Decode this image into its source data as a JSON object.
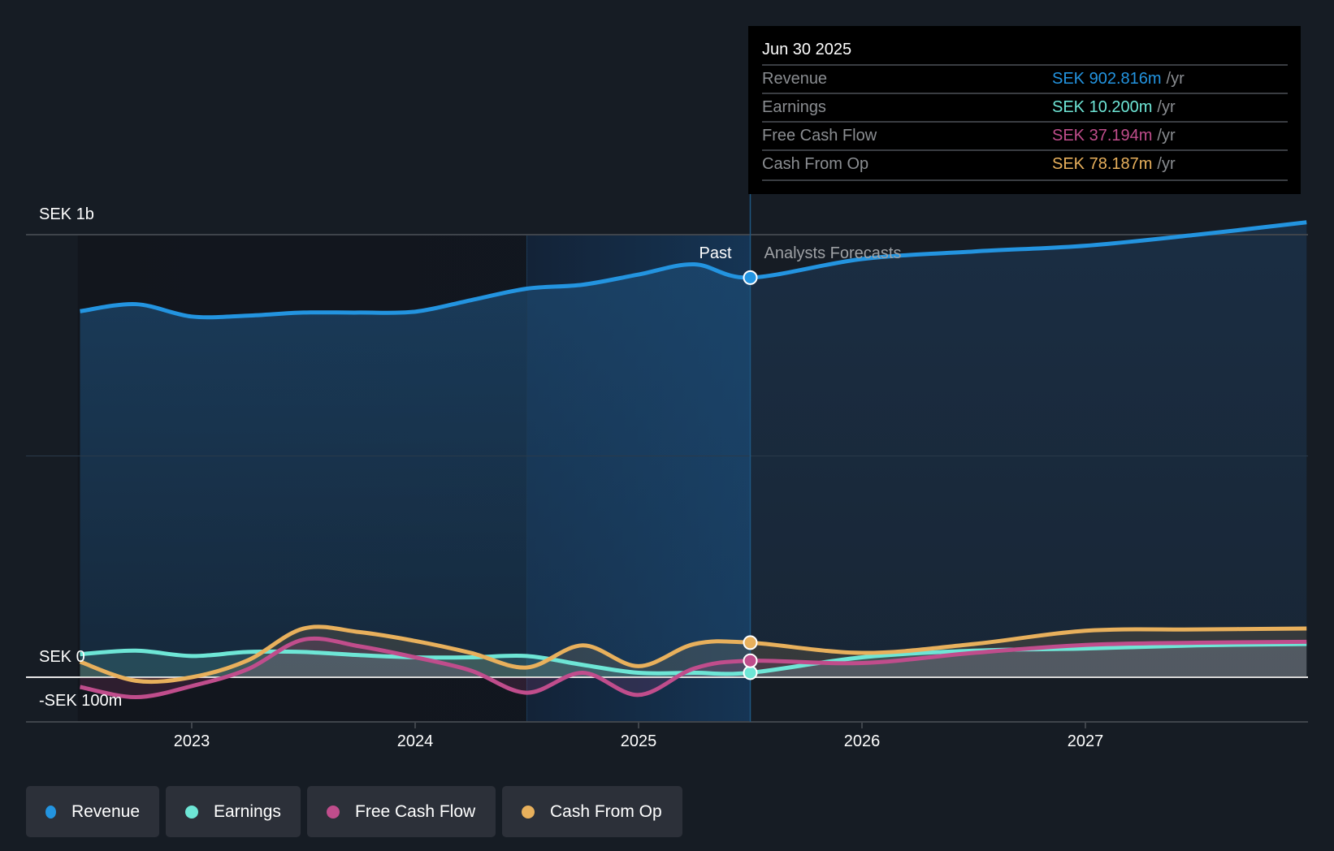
{
  "colors": {
    "background": "#161c24",
    "revenue": "#2394e0",
    "earnings": "#6ee6d6",
    "fcf": "#c04d8c",
    "cfo": "#e8b05c",
    "zero_line": "#e6e6e6",
    "grid": "#3f444b"
  },
  "tooltip": {
    "date": "Jun 30 2025",
    "rows": [
      {
        "label": "Revenue",
        "value": "SEK 902.816m",
        "unit": "/yr",
        "color_key": "revenue"
      },
      {
        "label": "Earnings",
        "value": "SEK 10.200m",
        "unit": "/yr",
        "color_key": "earnings"
      },
      {
        "label": "Free Cash Flow",
        "value": "SEK 37.194m",
        "unit": "/yr",
        "color_key": "fcf"
      },
      {
        "label": "Cash From Op",
        "value": "SEK 78.187m",
        "unit": "/yr",
        "color_key": "cfo"
      }
    ]
  },
  "segments": {
    "past": "Past",
    "forecast": "Analysts Forecasts"
  },
  "legend": [
    {
      "label": "Revenue",
      "color_key": "revenue"
    },
    {
      "label": "Earnings",
      "color_key": "earnings"
    },
    {
      "label": "Free Cash Flow",
      "color_key": "fcf"
    },
    {
      "label": "Cash From Op",
      "color_key": "cfo"
    }
  ],
  "chart_data": {
    "type": "line",
    "title": "",
    "xlabel": "",
    "ylabel": "",
    "unit": "SEK m",
    "x_ticks": [
      2023,
      2024,
      2025,
      2026,
      2027
    ],
    "x_tick_labels": [
      "2023",
      "2024",
      "2025",
      "2026",
      "2027"
    ],
    "xlim": [
      2022.49,
      2027.99
    ],
    "y_ticks": [
      1000,
      0,
      -100
    ],
    "y_tick_labels": [
      "SEK 1b",
      "SEK 0",
      "-SEK 100m"
    ],
    "ylim": [
      -100,
      1000
    ],
    "highlight_range": [
      2024.5,
      2025.5
    ],
    "past_forecast_split": 2025.5,
    "series": [
      {
        "name": "Revenue",
        "key": "revenue",
        "points": [
          [
            2022.5,
            827
          ],
          [
            2022.75,
            843
          ],
          [
            2023.0,
            815
          ],
          [
            2023.25,
            817
          ],
          [
            2023.5,
            824
          ],
          [
            2023.75,
            824
          ],
          [
            2024.0,
            826
          ],
          [
            2024.25,
            852
          ],
          [
            2024.5,
            878
          ],
          [
            2024.75,
            887
          ],
          [
            2025.0,
            910
          ],
          [
            2025.25,
            933
          ],
          [
            2025.5,
            903
          ],
          [
            2026.0,
            945
          ],
          [
            2026.5,
            962
          ],
          [
            2027.0,
            975
          ],
          [
            2027.5,
            1000
          ],
          [
            2027.99,
            1028
          ]
        ]
      },
      {
        "name": "Earnings",
        "key": "earnings",
        "points": [
          [
            2022.5,
            52
          ],
          [
            2022.75,
            60
          ],
          [
            2023.0,
            48
          ],
          [
            2023.25,
            57
          ],
          [
            2023.5,
            57
          ],
          [
            2023.75,
            50
          ],
          [
            2024.0,
            45
          ],
          [
            2024.25,
            45
          ],
          [
            2024.5,
            48
          ],
          [
            2024.75,
            28
          ],
          [
            2025.0,
            10
          ],
          [
            2025.25,
            10
          ],
          [
            2025.5,
            10.2
          ],
          [
            2026.0,
            45
          ],
          [
            2026.5,
            60
          ],
          [
            2027.0,
            65
          ],
          [
            2027.5,
            72
          ],
          [
            2027.99,
            75
          ]
        ]
      },
      {
        "name": "Free Cash Flow",
        "key": "fcf",
        "points": [
          [
            2022.5,
            -22
          ],
          [
            2022.75,
            -45
          ],
          [
            2023.0,
            -20
          ],
          [
            2023.25,
            18
          ],
          [
            2023.5,
            85
          ],
          [
            2023.75,
            70
          ],
          [
            2024.0,
            45
          ],
          [
            2024.25,
            15
          ],
          [
            2024.5,
            -35
          ],
          [
            2024.75,
            10
          ],
          [
            2025.0,
            -40
          ],
          [
            2025.25,
            20
          ],
          [
            2025.5,
            37.2
          ],
          [
            2026.0,
            32
          ],
          [
            2026.5,
            55
          ],
          [
            2027.0,
            73
          ],
          [
            2027.5,
            78
          ],
          [
            2027.99,
            80
          ]
        ]
      },
      {
        "name": "Cash From Op",
        "key": "cfo",
        "points": [
          [
            2022.5,
            35
          ],
          [
            2022.75,
            -8
          ],
          [
            2023.0,
            0
          ],
          [
            2023.25,
            38
          ],
          [
            2023.5,
            110
          ],
          [
            2023.75,
            102
          ],
          [
            2024.0,
            82
          ],
          [
            2024.25,
            55
          ],
          [
            2024.5,
            22
          ],
          [
            2024.75,
            72
          ],
          [
            2025.0,
            25
          ],
          [
            2025.25,
            75
          ],
          [
            2025.5,
            78.2
          ],
          [
            2026.0,
            55
          ],
          [
            2026.5,
            75
          ],
          [
            2027.0,
            105
          ],
          [
            2027.5,
            108
          ],
          [
            2027.99,
            110
          ]
        ]
      }
    ],
    "tooltip_at": 2025.5,
    "grid": true,
    "legend_position": "bottom-left"
  }
}
